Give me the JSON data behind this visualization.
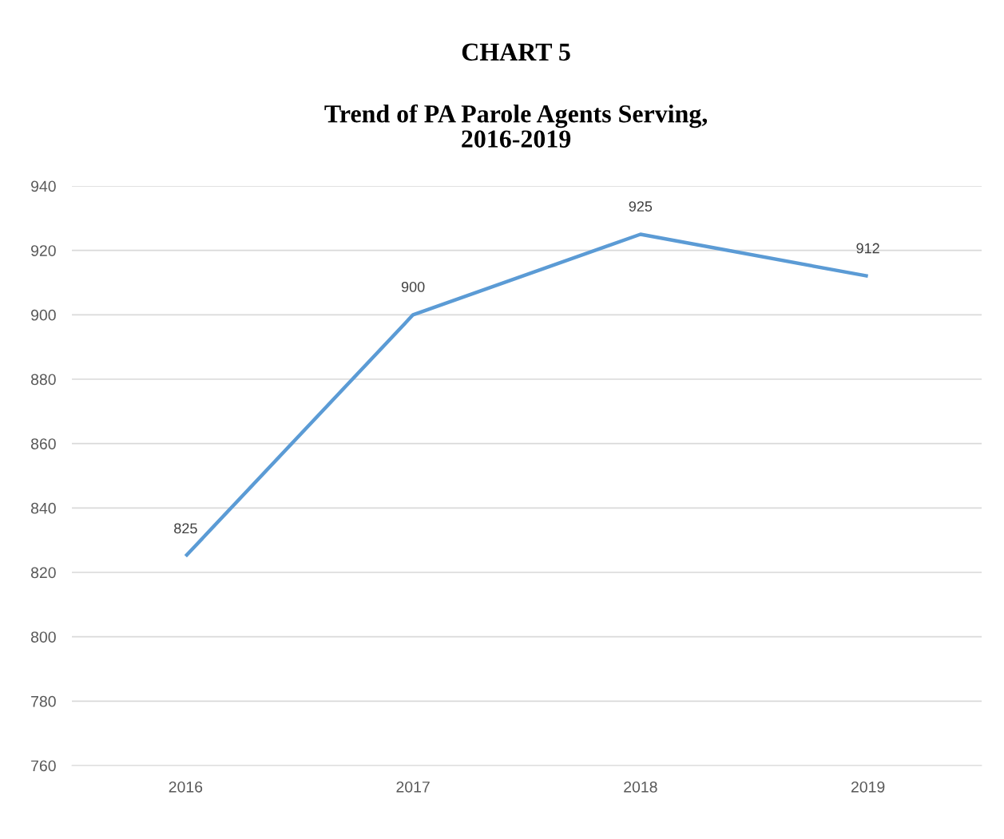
{
  "chart_data": {
    "type": "line",
    "title": "CHART 5",
    "subtitle": "Trend of PA Parole Agents Serving,\n2016-2019",
    "categories": [
      "2016",
      "2017",
      "2018",
      "2019"
    ],
    "series": [
      {
        "color": "#5b9bd5",
        "values": [
          825,
          900,
          925,
          912
        ]
      }
    ],
    "ylim": [
      760,
      940
    ],
    "yticks": [
      760,
      780,
      800,
      820,
      840,
      860,
      880,
      900,
      920,
      940
    ],
    "grid": "y",
    "legend": false,
    "data_labels": true,
    "marker": "none",
    "line_style": "solid"
  }
}
